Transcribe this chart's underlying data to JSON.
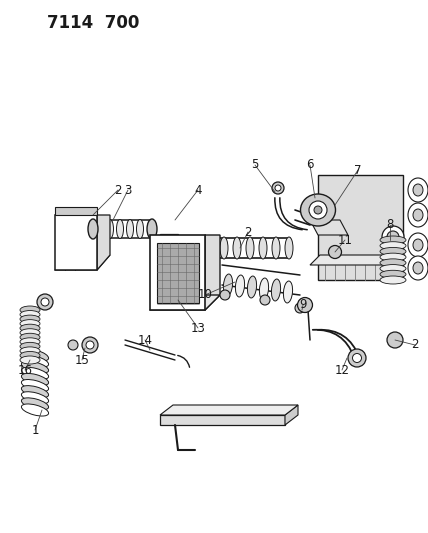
{
  "title": "7114  700",
  "bg_color": "#ffffff",
  "line_color": "#1a1a1a",
  "fig_width": 4.28,
  "fig_height": 5.33,
  "dpi": 100,
  "label_fontsize": 8.5,
  "title_fontsize": 12,
  "gray_dark": "#555555",
  "gray_mid": "#888888",
  "gray_light": "#cccccc",
  "gray_fill": "#dddddd",
  "gray_shadow": "#aaaaaa"
}
